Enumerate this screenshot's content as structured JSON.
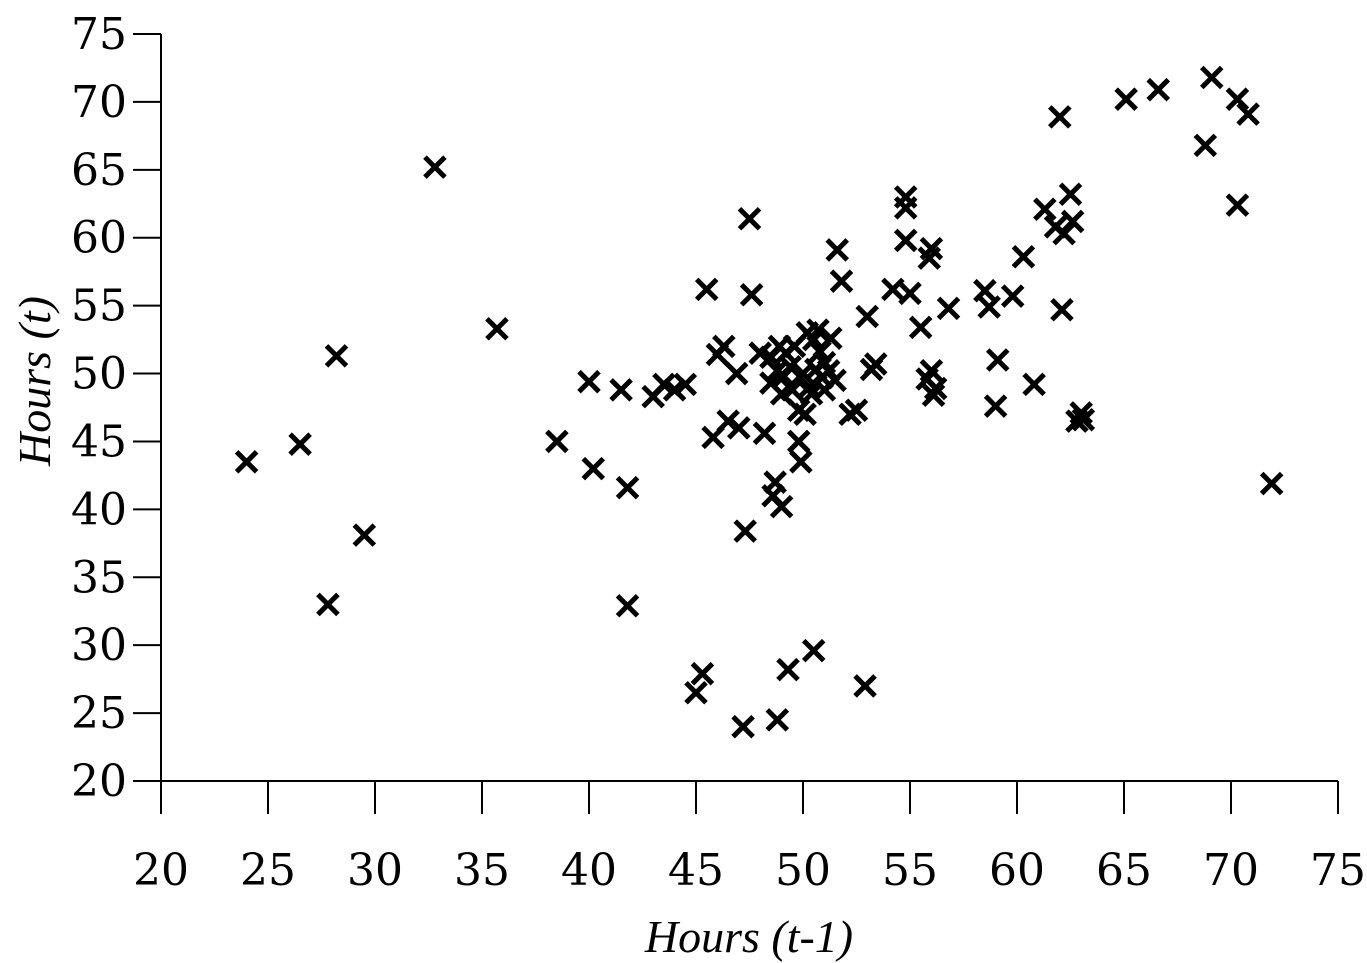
{
  "chart_data": {
    "type": "scatter",
    "title": "",
    "xlabel": "Hours (t-1)",
    "ylabel": "Hours (t)",
    "xlim": [
      20,
      75
    ],
    "ylim": [
      20,
      75
    ],
    "x_ticks": [
      "20",
      "25",
      "30",
      "35",
      "40",
      "45",
      "50",
      "55",
      "60",
      "65",
      "70",
      "75"
    ],
    "y_ticks": [
      "20",
      "25",
      "30",
      "35",
      "40",
      "45",
      "50",
      "55",
      "60",
      "65",
      "70",
      "75"
    ],
    "grid": false,
    "legend": "none",
    "marker": "x",
    "marker_color": "#000000",
    "points": [
      [
        24,
        43.5
      ],
      [
        26.5,
        44.8
      ],
      [
        27.8,
        33
      ],
      [
        28.2,
        51.3
      ],
      [
        29.5,
        38.1
      ],
      [
        32.8,
        65.2
      ],
      [
        35.7,
        53.3
      ],
      [
        38.5,
        45
      ],
      [
        40,
        49.4
      ],
      [
        40.2,
        43
      ],
      [
        41.5,
        48.8
      ],
      [
        41.8,
        41.6
      ],
      [
        41.8,
        32.9
      ],
      [
        43,
        48.3
      ],
      [
        43.5,
        49.2
      ],
      [
        44,
        48.8
      ],
      [
        44.5,
        49.2
      ],
      [
        45,
        26.5
      ],
      [
        45.3,
        27.9
      ],
      [
        45.5,
        56.2
      ],
      [
        45.8,
        45.3
      ],
      [
        46,
        51.4
      ],
      [
        46.3,
        52
      ],
      [
        46.5,
        46.5
      ],
      [
        46.9,
        50
      ],
      [
        47,
        46
      ],
      [
        47.2,
        24
      ],
      [
        47.3,
        38.4
      ],
      [
        47.5,
        61.4
      ],
      [
        47.6,
        55.8
      ],
      [
        48,
        51.5
      ],
      [
        48.2,
        45.6
      ],
      [
        48.5,
        51.2
      ],
      [
        48.5,
        49.3
      ],
      [
        48.6,
        41
      ],
      [
        48.7,
        42
      ],
      [
        48.8,
        24.5
      ],
      [
        48.8,
        50.2
      ],
      [
        48.9,
        52
      ],
      [
        49,
        48.5
      ],
      [
        49,
        40.2
      ],
      [
        49.1,
        49.8
      ],
      [
        49.2,
        51.5
      ],
      [
        49.3,
        28.2
      ],
      [
        49.4,
        50.5
      ],
      [
        49.5,
        48.8
      ],
      [
        49.6,
        52
      ],
      [
        49.8,
        47.3
      ],
      [
        49.8,
        45
      ],
      [
        49.9,
        43.5
      ],
      [
        50,
        50
      ],
      [
        50.1,
        47
      ],
      [
        50.2,
        53
      ],
      [
        50.3,
        49
      ],
      [
        50.4,
        48.5
      ],
      [
        50.5,
        29.6
      ],
      [
        50.5,
        52.5
      ],
      [
        50.6,
        50.3
      ],
      [
        50.7,
        53.2
      ],
      [
        50.8,
        51.6
      ],
      [
        50.9,
        49.7
      ],
      [
        51,
        50.8
      ],
      [
        51,
        48.8
      ],
      [
        51.2,
        50.2
      ],
      [
        51.3,
        52.6
      ],
      [
        51.5,
        49.5
      ],
      [
        51.6,
        59.1
      ],
      [
        51.8,
        56.8
      ],
      [
        52.2,
        47
      ],
      [
        52.5,
        47.3
      ],
      [
        52.9,
        27
      ],
      [
        53.2,
        50.3
      ],
      [
        53.4,
        50.7
      ],
      [
        53,
        54.2
      ],
      [
        54.2,
        56.2
      ],
      [
        54.8,
        62.2
      ],
      [
        54.8,
        63
      ],
      [
        54.8,
        59.8
      ],
      [
        55,
        55.9
      ],
      [
        55.5,
        53.4
      ],
      [
        55.8,
        49.6
      ],
      [
        56,
        50.2
      ],
      [
        55.9,
        58.5
      ],
      [
        56,
        59.2
      ],
      [
        56.1,
        48.4
      ],
      [
        56.2,
        48.9
      ],
      [
        56.8,
        54.8
      ],
      [
        58.5,
        56.1
      ],
      [
        58.7,
        54.9
      ],
      [
        59,
        47.6
      ],
      [
        59.1,
        51
      ],
      [
        59.8,
        55.7
      ],
      [
        60.3,
        58.6
      ],
      [
        60.8,
        49.2
      ],
      [
        61.3,
        62.1
      ],
      [
        61.8,
        60.8
      ],
      [
        62,
        68.9
      ],
      [
        62.1,
        54.7
      ],
      [
        62.2,
        60.3
      ],
      [
        62.5,
        63.2
      ],
      [
        62.6,
        61.2
      ],
      [
        62.8,
        46.5
      ],
      [
        63.1,
        46.6
      ],
      [
        63,
        47.1
      ],
      [
        65.1,
        70.2
      ],
      [
        66.6,
        70.9
      ],
      [
        68.8,
        66.8
      ],
      [
        69.1,
        71.8
      ],
      [
        70.3,
        70.2
      ],
      [
        70.3,
        62.4
      ],
      [
        70.8,
        69.1
      ],
      [
        71.9,
        41.9
      ]
    ]
  }
}
